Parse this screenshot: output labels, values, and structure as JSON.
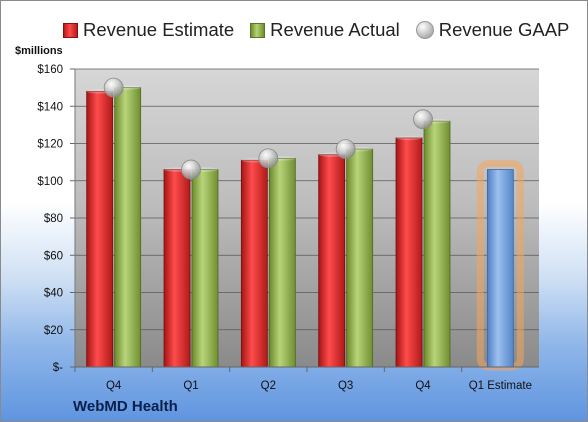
{
  "company_name": "WebMD Health",
  "units_label": "$millions",
  "colors": {
    "estimate": "#d32f2f",
    "actual": "#8fb04a",
    "gaap": "#c8c8c8",
    "estimate_forecast": "#6f9fdc",
    "highlight": "#f5a65b"
  },
  "chart_data": {
    "type": "bar",
    "categories": [
      "Q4",
      "Q1",
      "Q2",
      "Q3",
      "Q4",
      "Q1 Estimate"
    ],
    "ylim": [
      0,
      160
    ],
    "yticks": [
      0,
      20,
      40,
      60,
      80,
      100,
      120,
      140,
      160
    ],
    "ytick_labels": [
      "$-",
      "$20",
      "$40",
      "$60",
      "$80",
      "$100",
      "$120",
      "$140",
      "$160"
    ],
    "grid": true,
    "legend_position": "top",
    "series": [
      {
        "name": "Revenue Estimate",
        "kind": "bar",
        "values": [
          148,
          106,
          111,
          114,
          123,
          null
        ]
      },
      {
        "name": "Revenue Actual",
        "kind": "bar",
        "values": [
          150,
          106,
          112,
          117,
          132,
          null
        ]
      },
      {
        "name": "Revenue GAAP",
        "kind": "marker",
        "values": [
          150,
          106,
          112,
          117,
          133,
          null
        ]
      }
    ],
    "forecast": {
      "category": "Q1 Estimate",
      "value": 106,
      "highlighted": true
    }
  }
}
